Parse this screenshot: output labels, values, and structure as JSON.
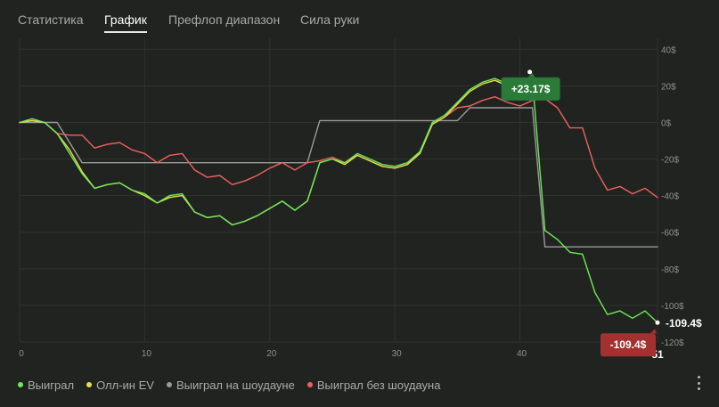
{
  "tabs": [
    {
      "label": "Статистика",
      "active": false
    },
    {
      "label": "График",
      "active": true
    },
    {
      "label": "Префлоп диапазон",
      "active": false
    },
    {
      "label": "Сила руки",
      "active": false
    }
  ],
  "legend": [
    {
      "label": "Выиграл",
      "color": "#6ee85a"
    },
    {
      "label": "Олл-ин EV",
      "color": "#e9e04a"
    },
    {
      "label": "Выиграл на шоудауне",
      "color": "#9a9a9a"
    },
    {
      "label": "Выиграл без шоудауна",
      "color": "#f0615d"
    }
  ],
  "menu_icon": "vertical-ellipsis-icon",
  "chart_data": {
    "type": "line",
    "xlim": [
      0,
      51
    ],
    "ylim": [
      -120,
      45
    ],
    "x_ticks": [
      0,
      10,
      20,
      30,
      40
    ],
    "x_tick_labels": [
      "0",
      "10",
      "20",
      "30",
      "40"
    ],
    "x_end_label": "51",
    "y_ticks": [
      40,
      20,
      0,
      -20,
      -40,
      -60,
      -80,
      -100,
      -120
    ],
    "y_tick_labels": [
      "40$",
      "20$",
      "0$",
      "-20$",
      "-40$",
      "-60$",
      "-80$",
      "-100$",
      "-120$"
    ],
    "grid": true,
    "background": "#212321",
    "grid_color": "#2f322f",
    "series": [
      {
        "name": "Выиграл на шоудауне",
        "color": "#9a9a9a",
        "x": [
          0,
          3,
          5,
          23,
          24,
          35,
          36,
          41,
          42,
          46,
          51
        ],
        "y": [
          0,
          0,
          -22,
          -22,
          1,
          1,
          8,
          8,
          -68,
          -68,
          -68
        ]
      },
      {
        "name": "Выиграл без шоудауна",
        "color": "#f0615d",
        "x": [
          0,
          1,
          2,
          3,
          4,
          5,
          6,
          7,
          8,
          9,
          10,
          11,
          12,
          13,
          14,
          15,
          16,
          17,
          18,
          19,
          20,
          21,
          22,
          23,
          24,
          25,
          26,
          27,
          28,
          29,
          30,
          31,
          32,
          33,
          34,
          35,
          36,
          37,
          38,
          39,
          40,
          41,
          42,
          43,
          44,
          45,
          46,
          47,
          48,
          49,
          50,
          51
        ],
        "y": [
          0,
          1,
          0,
          -6,
          -7,
          -7,
          -14,
          -12,
          -11,
          -15,
          -17,
          -22,
          -18,
          -17,
          -26,
          -30,
          -29,
          -34,
          -32,
          -29,
          -25,
          -22,
          -26,
          -22,
          -21,
          -19,
          -22,
          -18,
          -21,
          -24,
          -25,
          -23,
          -16,
          -1,
          3,
          8,
          9,
          12,
          14,
          11,
          9,
          12,
          13,
          8,
          -3,
          -3,
          -25,
          -37,
          -35,
          -39,
          -36,
          -41
        ]
      },
      {
        "name": "Олл-ин EV",
        "color": "#e9e04a",
        "x": [
          0,
          1,
          2,
          3,
          4,
          5,
          6,
          7,
          8,
          9,
          10,
          11,
          12,
          13,
          14,
          15,
          16,
          17,
          18,
          19,
          20,
          21,
          22,
          23,
          24,
          25,
          26,
          27,
          28,
          29,
          30,
          31,
          32,
          33,
          34,
          35,
          36,
          37,
          38,
          39,
          40,
          41
        ],
        "y": [
          0,
          1,
          0,
          -6,
          -15,
          -27,
          -36,
          -34,
          -33,
          -37,
          -40,
          -44,
          -41,
          -40,
          -49,
          -52,
          -51,
          -56,
          -54,
          -51,
          -47,
          -43,
          -48,
          -43,
          -22,
          -20,
          -23,
          -18,
          -21,
          -24,
          -25,
          -23,
          -17,
          -1,
          3,
          10,
          17,
          21,
          23,
          20,
          17,
          21
        ]
      },
      {
        "name": "Выиграл",
        "color": "#6ee85a",
        "x": [
          0,
          1,
          2,
          3,
          4,
          5,
          6,
          7,
          8,
          9,
          10,
          11,
          12,
          13,
          14,
          15,
          16,
          17,
          18,
          19,
          20,
          21,
          22,
          23,
          24,
          25,
          26,
          27,
          28,
          29,
          30,
          31,
          32,
          33,
          34,
          35,
          36,
          37,
          38,
          39,
          40,
          41,
          42,
          43,
          44,
          45,
          46,
          47,
          48,
          49,
          50,
          51
        ],
        "y": [
          0,
          2,
          0,
          -6,
          -17,
          -28,
          -36,
          -34,
          -33,
          -37,
          -39,
          -44,
          -40,
          -39,
          -49,
          -52,
          -51,
          -56,
          -54,
          -51,
          -47,
          -43,
          -48,
          -43,
          -22,
          -20,
          -22,
          -17,
          -20,
          -23,
          -24,
          -22,
          -16,
          0,
          4,
          11,
          18,
          22,
          24,
          21,
          18,
          23.17,
          -59,
          -64,
          -71,
          -72,
          -93,
          -105,
          -103,
          -107,
          -103,
          -109.4
        ]
      }
    ],
    "annotations": [
      {
        "label": "+23.17$",
        "x": 41,
        "y": 23.17,
        "color": "#2a7a38"
      },
      {
        "label": "-109.4$",
        "x": 51,
        "y": -109.4,
        "color": "#a3312f"
      }
    ],
    "end_value_label": "-109.4$"
  }
}
